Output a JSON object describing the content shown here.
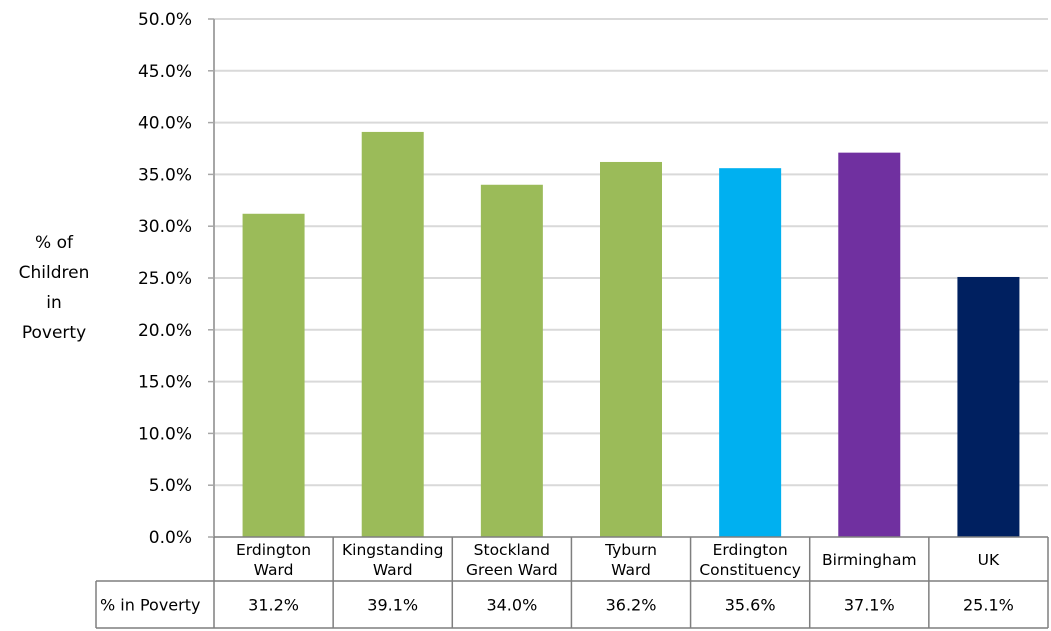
{
  "chart_data": {
    "type": "bar",
    "categories": [
      [
        "Erdington",
        "Ward"
      ],
      [
        "Kingstanding",
        "Ward"
      ],
      [
        "Stockland",
        "Green Ward"
      ],
      [
        "Tyburn",
        "Ward"
      ],
      [
        "Erdington",
        "Constituency"
      ],
      [
        "Birmingham"
      ],
      [
        "UK"
      ]
    ],
    "values": [
      31.2,
      39.1,
      34.0,
      36.2,
      35.6,
      37.1,
      25.1
    ],
    "value_labels": [
      "31.2%",
      "39.1%",
      "34.0%",
      "36.2%",
      "35.6%",
      "37.1%",
      "25.1%"
    ],
    "bar_colors": [
      "#9bbb59",
      "#9bbb59",
      "#9bbb59",
      "#9bbb59",
      "#00b0f0",
      "#7030a0",
      "#002060"
    ],
    "title": "",
    "ylabel": [
      "% of",
      "Children",
      "in",
      "Poverty"
    ],
    "ylim": [
      0,
      50
    ],
    "y_ticks": [
      "0.0%",
      "5.0%",
      "10.0%",
      "15.0%",
      "20.0%",
      "25.0%",
      "30.0%",
      "35.0%",
      "40.0%",
      "45.0%",
      "50.0%"
    ],
    "grid": true,
    "legend": "none",
    "data_table": {
      "row_label": "% in Poverty"
    }
  }
}
